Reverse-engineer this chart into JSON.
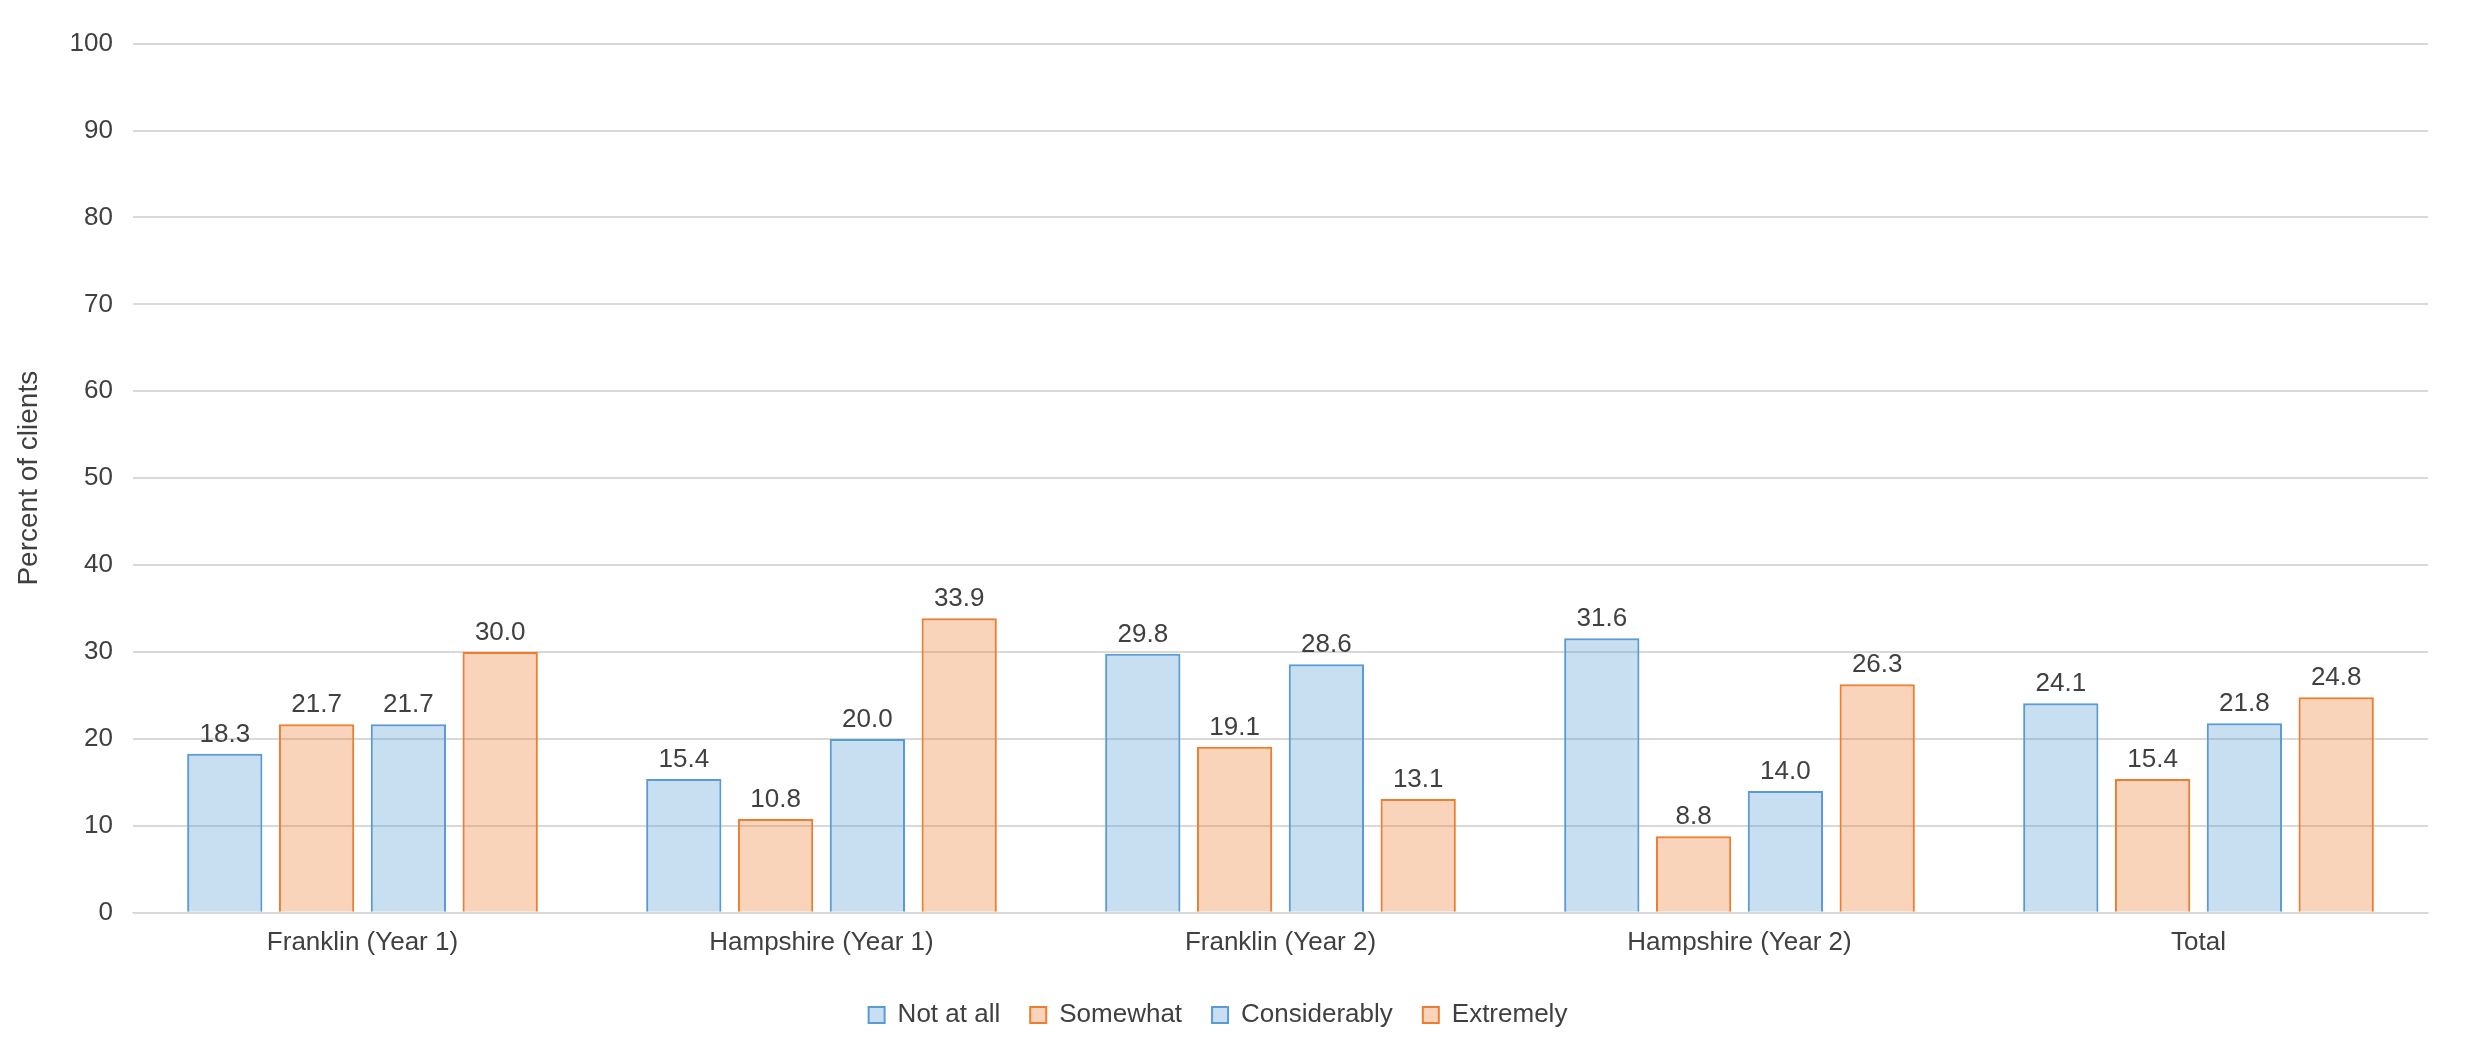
{
  "chart_data": {
    "type": "bar",
    "ylabel": "Percent of clients",
    "categories": [
      "Franklin (Year 1)",
      "Hampshire (Year 1)",
      "Franklin (Year 2)",
      "Hampshire (Year 2)",
      "Total"
    ],
    "series": [
      {
        "name": "Not at all",
        "color": "#5b9bd5",
        "values": [
          18.3,
          15.4,
          29.8,
          31.6,
          24.1
        ],
        "value_labels": [
          "18.3",
          "15.4",
          "29.8",
          "31.6",
          "24.1"
        ]
      },
      {
        "name": "Somewhat",
        "color": "#ed7d31",
        "values": [
          21.7,
          10.8,
          19.1,
          8.8,
          15.4
        ],
        "value_labels": [
          "21.7",
          "10.8",
          "19.1",
          "8.8",
          "15.4"
        ]
      },
      {
        "name": "Considerably",
        "color": "#5b9bd5",
        "values": [
          21.7,
          20,
          28.6,
          14,
          21.8
        ],
        "value_labels": [
          "21.7",
          "20.0",
          "28.6",
          "14.0",
          "21.8"
        ]
      },
      {
        "name": "Extremely",
        "color": "#ed7d31",
        "values": [
          30,
          33.9,
          13.1,
          26.3,
          24.8
        ],
        "value_labels": [
          "30.0",
          "33.9",
          "13.1",
          "26.3",
          "24.8"
        ]
      }
    ],
    "ylim": [
      0,
      100
    ],
    "yticks": [
      0,
      10,
      20,
      30,
      40,
      50,
      60,
      70,
      80,
      90,
      100
    ],
    "grid": "y",
    "legend": "bottom"
  }
}
